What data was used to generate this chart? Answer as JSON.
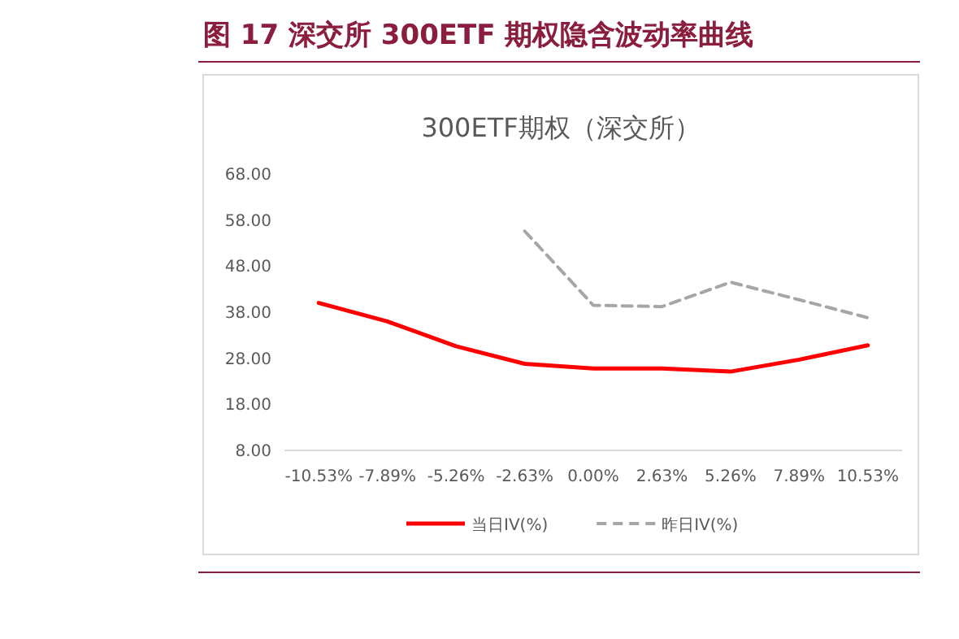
{
  "chart_data": {
    "type": "line",
    "title": "图 17    深交所 300ETF 期权隐含波动率曲线",
    "subtitle": "300ETF期权（深交所）",
    "categories": [
      "-10.53%",
      "-7.89%",
      "-5.26%",
      "-2.63%",
      "0.00%",
      "2.63%",
      "5.26%",
      "7.89%",
      "10.53%"
    ],
    "series": [
      {
        "name": "当日IV(%)",
        "color": "#ff0000",
        "line_style": "solid",
        "values": [
          40.0,
          36.0,
          30.6,
          26.8,
          25.8,
          25.8,
          25.1,
          27.7,
          30.8
        ]
      },
      {
        "name": "昨日IV(%)",
        "color": "#a6a6a6",
        "line_style": "dashed",
        "values": [
          null,
          null,
          null,
          55.6,
          39.5,
          39.2,
          44.5,
          40.7,
          36.8
        ]
      }
    ],
    "ylim": [
      8,
      68
    ],
    "yticks": [
      {
        "value": 8,
        "label": "8.00"
      },
      {
        "value": 18,
        "label": "18.00"
      },
      {
        "value": 28,
        "label": "28.00"
      },
      {
        "value": 38,
        "label": "38.00"
      },
      {
        "value": 48,
        "label": "48.00"
      },
      {
        "value": 58,
        "label": "58.00"
      },
      {
        "value": 68,
        "label": "68.00"
      }
    ],
    "grid": false,
    "legend": "bottom",
    "marker": "none"
  }
}
